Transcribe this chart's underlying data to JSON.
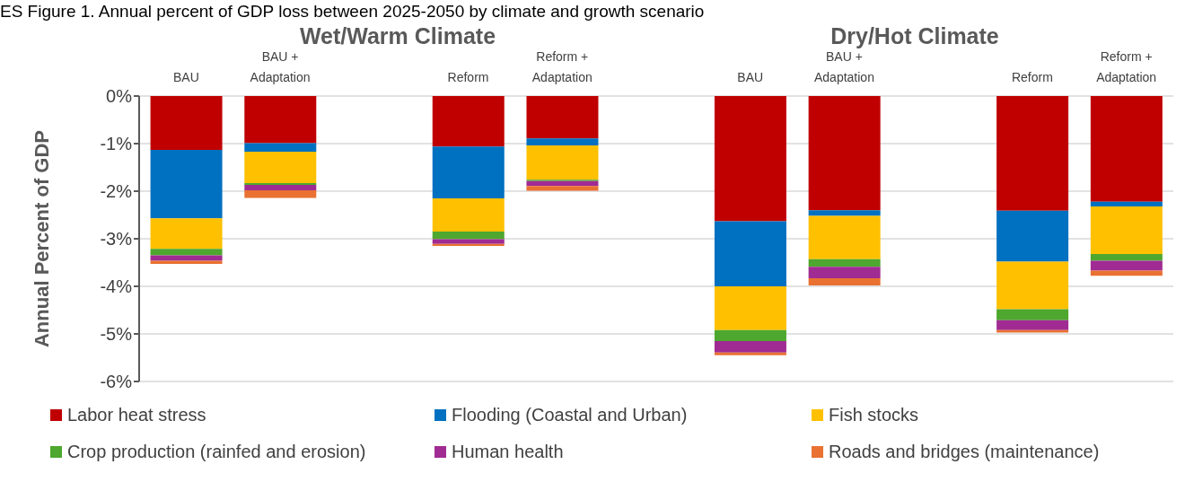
{
  "chart_data": {
    "type": "bar",
    "title": "ES Figure 1. Annual percent of GDP loss between 2025-2050 by climate and growth scenario",
    "ylabel": "Annual Percent of GDP",
    "annotations": [
      "Wet/Warm Climate",
      "Dry/Hot Climate"
    ],
    "categories": [
      "BAU",
      "BAU + Adaptation",
      null,
      "Reform",
      "Reform + Adaptation",
      null,
      "BAU",
      "BAU + Adaptation",
      null,
      "Reform",
      "Reform + Adaptation"
    ],
    "stacked": true,
    "series": [
      {
        "name": "Labor heat stress",
        "color": "#c00000",
        "values": [
          -1.13,
          -0.99,
          null,
          -1.06,
          -0.89,
          null,
          -2.63,
          -2.4,
          null,
          -2.41,
          -2.22
        ]
      },
      {
        "name": "Flooding (Coastal and Urban)",
        "color": "#0070c0",
        "values": [
          -1.44,
          -0.18,
          null,
          -1.09,
          -0.15,
          null,
          -1.37,
          -0.12,
          null,
          -1.07,
          -0.1
        ]
      },
      {
        "name": "Fish stocks",
        "color": "#ffc000",
        "values": [
          -0.64,
          -0.66,
          null,
          -0.7,
          -0.72,
          null,
          -0.92,
          -0.91,
          null,
          -1.0,
          -1.0
        ]
      },
      {
        "name": "Crop production (rainfed and erosion)",
        "color": "#4ea72e",
        "values": [
          -0.14,
          -0.04,
          null,
          -0.16,
          -0.03,
          null,
          -0.23,
          -0.16,
          null,
          -0.23,
          -0.14
        ]
      },
      {
        "name": "Human health",
        "color": "#a02b93",
        "values": [
          -0.11,
          -0.11,
          null,
          -0.1,
          -0.1,
          null,
          -0.24,
          -0.24,
          null,
          -0.21,
          -0.21
        ]
      },
      {
        "name": "Roads and bridges (maintenance)",
        "color": "#e97132",
        "values": [
          -0.07,
          -0.16,
          null,
          -0.04,
          -0.1,
          null,
          -0.06,
          -0.15,
          null,
          -0.05,
          -0.11
        ]
      }
    ],
    "ylim": [
      -6,
      0
    ],
    "yticks": [
      {
        "value": 0,
        "label": "0%"
      },
      {
        "value": -1,
        "label": "-1%"
      },
      {
        "value": -2,
        "label": "-2%"
      },
      {
        "value": -3,
        "label": "-3%"
      },
      {
        "value": -4,
        "label": "-4%"
      },
      {
        "value": -5,
        "label": "-5%"
      },
      {
        "value": -6,
        "label": "-6%"
      }
    ],
    "grid": "y",
    "legend": "bottom"
  }
}
